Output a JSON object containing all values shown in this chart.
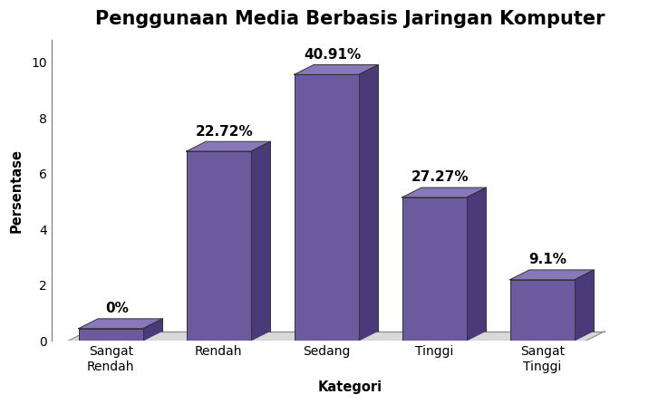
{
  "title": "Penggunaan Media Berbasis Jaringan Komputer",
  "categories": [
    "Sangat\nRendah",
    "Rendah",
    "Sedang",
    "Tinggi",
    "Sangat\nTinggi"
  ],
  "values": [
    0.45,
    6.8,
    9.55,
    5.15,
    2.2
  ],
  "percentages": [
    "0%",
    "22.72%",
    "40.91%",
    "27.27%",
    "9.1%"
  ],
  "bar_color": "#6B5B9E",
  "bar_top_color": "#8878BB",
  "bar_side_color": "#4A3A7A",
  "floor_color": "#CCCCCC",
  "xlabel": "Kategori",
  "ylabel": "Persentase",
  "ylim": [
    0,
    10.8
  ],
  "yticks": [
    0,
    2,
    4,
    6,
    8,
    10
  ],
  "title_fontsize": 15,
  "label_fontsize": 10.5,
  "tick_fontsize": 10,
  "annotation_fontsize": 11,
  "background_color": "#ffffff"
}
